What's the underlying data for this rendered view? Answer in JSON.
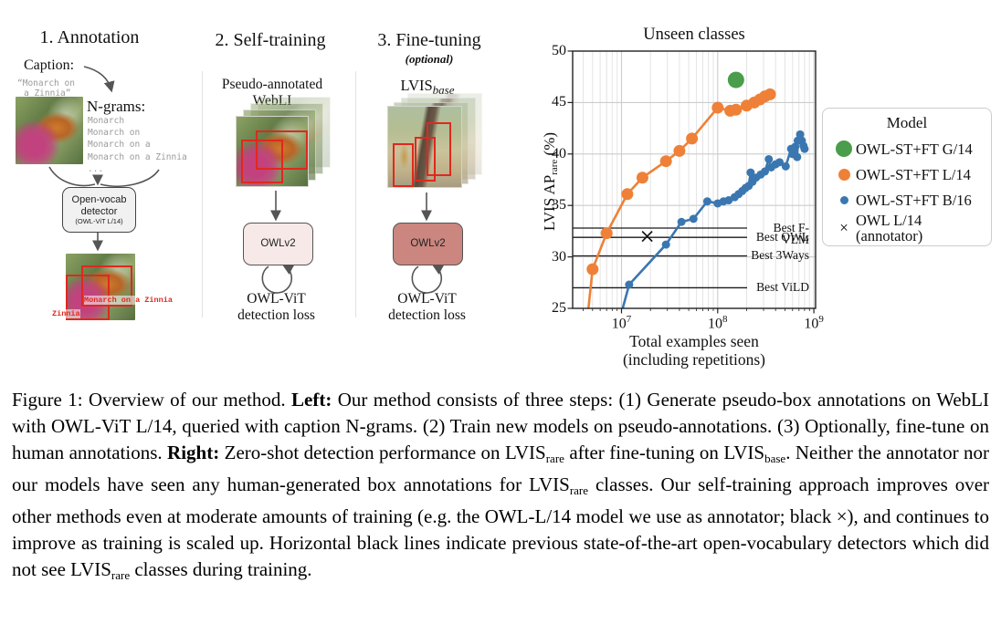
{
  "figure": {
    "panels": [
      {
        "title": "1. Annotation",
        "caption_label": "Caption:",
        "caption_text": [
          "“Monarch on",
          "a Zinnia”"
        ],
        "ngrams_label": "N-grams:",
        "ngrams": [
          "Monarch",
          "Monarch on",
          "Monarch on a",
          "Monarch on a Zinnia",
          "..."
        ],
        "detector_box": {
          "line1": "Open-vocab",
          "line2": "detector",
          "line3": "(OWL-ViT L/14)"
        },
        "detection_labels": {
          "box1": "Monarch on a Zinnia",
          "box2": "Zinnia"
        }
      },
      {
        "title": "2. Self-training",
        "data_label": [
          "Pseudo-annotated",
          "WebLI"
        ],
        "model_box": "OWLv2",
        "loss_label": [
          "OWL-ViT",
          "detection loss"
        ]
      },
      {
        "title": "3. Fine-tuning",
        "subtitle": "(optional)",
        "data_label_main": "LVIS",
        "data_label_sub": "base",
        "model_box": "OWLv2",
        "loss_label": [
          "OWL-ViT",
          "detection loss"
        ]
      }
    ]
  },
  "chart_data": {
    "type": "line",
    "title": "Unseen classes",
    "xlabel_line1": "Total examples seen",
    "xlabel_line2": "(including repetitions)",
    "ylabel_main": "LVIS AP",
    "ylabel_sub": "rare",
    "ylabel_suffix": " (%)",
    "xscale": "log",
    "xlim": [
      3200000.0,
      1050000000.0
    ],
    "ylim": [
      25,
      50
    ],
    "yticks": [
      25,
      30,
      35,
      40,
      45,
      50
    ],
    "xticks": [
      10000000.0,
      100000000.0,
      1000000000.0
    ],
    "grid": true,
    "legend_title": "Model",
    "legend_position": "right",
    "series": [
      {
        "name": "OWL-ST+FT G/14",
        "color": "#4a9d4a",
        "marker": "circle",
        "marker_size": 9,
        "line": false,
        "points": [
          [
            155000000.0,
            47.2
          ]
        ]
      },
      {
        "name": "OWL-ST+FT L/14",
        "color": "#ee8137",
        "marker": "circle",
        "marker_size": 6.5,
        "line": true,
        "line_entry": [
          4300000.0,
          23
        ],
        "points": [
          [
            5000000.0,
            28.8
          ],
          [
            7000000.0,
            32.3
          ],
          [
            11500000.0,
            36.1
          ],
          [
            16500000.0,
            37.7
          ],
          [
            29000000.0,
            39.3
          ],
          [
            40000000.0,
            40.3
          ],
          [
            54000000.0,
            41.5
          ],
          [
            100000000.0,
            44.5
          ],
          [
            135000000.0,
            44.2
          ],
          [
            155000000.0,
            44.3
          ],
          [
            200000000.0,
            44.7
          ],
          [
            240000000.0,
            45.0
          ],
          [
            275000000.0,
            45.3
          ],
          [
            310000000.0,
            45.6
          ],
          [
            350000000.0,
            45.8
          ]
        ]
      },
      {
        "name": "OWL-ST+FT B/16",
        "color": "#3a77b0",
        "marker": "circle",
        "marker_size": 4.5,
        "line": true,
        "line_entry": [
          9000000.0,
          23
        ],
        "points": [
          [
            12000000.0,
            27.3
          ],
          [
            29000000.0,
            31.2
          ],
          [
            42000000.0,
            33.4
          ],
          [
            56000000.0,
            33.7
          ],
          [
            78000000.0,
            35.4
          ],
          [
            100000000.0,
            35.2
          ],
          [
            115000000.0,
            35.4
          ],
          [
            130000000.0,
            35.5
          ],
          [
            150000000.0,
            35.8
          ],
          [
            165000000.0,
            36.1
          ],
          [
            180000000.0,
            36.4
          ],
          [
            195000000.0,
            36.7
          ],
          [
            210000000.0,
            36.9
          ],
          [
            220000000.0,
            38.2
          ],
          [
            230000000.0,
            37.3
          ],
          [
            250000000.0,
            37.7
          ],
          [
            280000000.0,
            38.0
          ],
          [
            310000000.0,
            38.3
          ],
          [
            340000000.0,
            39.5
          ],
          [
            360000000.0,
            38.7
          ],
          [
            400000000.0,
            39.0
          ],
          [
            440000000.0,
            39.2
          ],
          [
            510000000.0,
            38.8
          ],
          [
            580000000.0,
            40.5
          ],
          [
            600000000.0,
            40.0
          ],
          [
            640000000.0,
            40.7
          ],
          [
            670000000.0,
            39.7
          ],
          [
            680000000.0,
            41.3
          ],
          [
            720000000.0,
            41.9
          ],
          [
            750000000.0,
            41.3
          ],
          [
            780000000.0,
            40.8
          ],
          [
            800000000.0,
            40.5
          ]
        ]
      },
      {
        "name": "OWL L/14",
        "name_note": "(annotator)",
        "color": "#000000",
        "marker": "x",
        "marker_size": 5.5,
        "line": false,
        "points": [
          [
            18500000.0,
            32.0
          ]
        ]
      }
    ],
    "annotations": [
      {
        "label": "Best F-VLM",
        "y": 32.8
      },
      {
        "label": "Best OWL",
        "y": 31.9
      },
      {
        "label": "Best 3Ways",
        "y": 30.1
      },
      {
        "label": "Best ViLD",
        "y": 27.0
      }
    ]
  },
  "caption": {
    "segments": [
      {
        "t": "Figure 1: Overview of our method. "
      },
      {
        "t": "Left:",
        "b": true
      },
      {
        "t": " Our method consists of three steps: (1) Generate pseudo-box annotations on WebLI with OWL-ViT L/14, queried with caption N-grams. (2) Train new models on pseudo-annotations. (3) Optionally, fine-tune on human annotations. "
      },
      {
        "t": "Right:",
        "b": true
      },
      {
        "t": " Zero-shot detection performance on LVIS"
      },
      {
        "t": "rare",
        "sub": true
      },
      {
        "t": " after fine-tuning on LVIS"
      },
      {
        "t": "base",
        "sub": true
      },
      {
        "t": ". Neither the annotator nor our models have seen any human-generated box annotations for LVIS"
      },
      {
        "t": "rare",
        "sub": true
      },
      {
        "t": " classes. Our self-training approach improves over other methods even at moderate amounts of training (e.g. the OWL-L/14 model we use as annotator; black ×), and continues to improve as training is scaled up. Horizontal black lines indicate previous state-of-the-art open-vocabulary detectors which did not see LVIS"
      },
      {
        "t": "rare",
        "sub": true
      },
      {
        "t": " classes during training."
      }
    ]
  },
  "colors": {
    "series_green": "#4a9d4a",
    "series_orange": "#ee8137",
    "series_blue": "#3a77b0",
    "red_box": "#e0281e",
    "arrow": "#555555",
    "model_box_light": "#f7e9e7",
    "model_box_dark": "#ca867f",
    "detector_box_bg": "#f1f1f1",
    "gray_text": "#9a9a9a"
  }
}
